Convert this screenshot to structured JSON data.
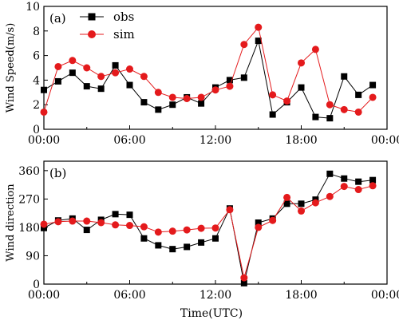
{
  "chart_data": [
    {
      "type": "line",
      "panel_label": "(a)",
      "ylabel": "Wind Speed(m/s)",
      "xlabel": "",
      "xlim": [
        0,
        24
      ],
      "ylim": [
        0,
        10
      ],
      "xticks": [
        0,
        6,
        12,
        18,
        24
      ],
      "xtick_labels": [
        "00:00",
        "06:00",
        "12:00",
        "18:00",
        "00:00"
      ],
      "yticks": [
        0,
        2,
        4,
        6,
        8,
        10
      ],
      "ytick_labels": [
        "0",
        "2",
        "4",
        "6",
        "8",
        "10"
      ],
      "grid": false,
      "legend_position": "top-left",
      "series": [
        {
          "name": "obs",
          "color": "#000000",
          "marker": "square",
          "x": [
            0,
            1,
            2,
            3,
            4,
            5,
            6,
            7,
            8,
            9,
            10,
            11,
            12,
            13,
            14,
            15,
            16,
            17,
            18,
            19,
            20,
            21,
            22,
            23
          ],
          "y": [
            3.2,
            3.9,
            4.6,
            3.5,
            3.3,
            5.2,
            3.6,
            2.2,
            1.6,
            2.0,
            2.6,
            2.1,
            3.4,
            4.0,
            4.2,
            7.2,
            1.2,
            2.2,
            3.4,
            1.0,
            0.9,
            4.3,
            2.8,
            3.6
          ]
        },
        {
          "name": "sim",
          "color": "#e41a1c",
          "marker": "circle",
          "x": [
            0,
            1,
            2,
            3,
            4,
            5,
            6,
            7,
            8,
            9,
            10,
            11,
            12,
            13,
            14,
            15,
            16,
            17,
            18,
            19,
            20,
            21,
            22,
            23
          ],
          "y": [
            1.4,
            5.1,
            5.6,
            5.0,
            4.3,
            4.6,
            4.9,
            4.3,
            3.0,
            2.6,
            2.5,
            2.6,
            3.2,
            3.5,
            6.9,
            8.3,
            2.8,
            2.3,
            5.4,
            6.5,
            2.0,
            1.6,
            1.4,
            2.6
          ]
        }
      ]
    },
    {
      "type": "line",
      "panel_label": "(b)",
      "ylabel": "Wind direction",
      "xlabel": "Time(UTC)",
      "xlim": [
        0,
        24
      ],
      "ylim": [
        0,
        390
      ],
      "xticks": [
        0,
        6,
        12,
        18,
        24
      ],
      "xtick_labels": [
        "00:00",
        "06:00",
        "12:00",
        "18:00",
        "00:00"
      ],
      "yticks": [
        0,
        90,
        180,
        270,
        360
      ],
      "ytick_labels": [
        "0",
        "90",
        "180",
        "270",
        "360"
      ],
      "grid": false,
      "series": [
        {
          "color": "#000000",
          "marker": "square",
          "x": [
            0,
            1,
            2,
            3,
            4,
            5,
            6,
            7,
            8,
            9,
            10,
            11,
            12,
            13,
            14,
            15,
            16,
            17,
            18,
            19,
            20,
            21,
            22,
            23
          ],
          "y": [
            178,
            202,
            208,
            172,
            204,
            222,
            220,
            145,
            123,
            111,
            118,
            132,
            145,
            240,
            3,
            195,
            208,
            255,
            255,
            268,
            350,
            335,
            325,
            330
          ]
        },
        {
          "color": "#e41a1c",
          "marker": "circle",
          "x": [
            0,
            1,
            2,
            3,
            4,
            5,
            6,
            7,
            8,
            9,
            10,
            11,
            12,
            13,
            14,
            15,
            16,
            17,
            18,
            19,
            20,
            21,
            22,
            23
          ],
          "y": [
            190,
            198,
            200,
            200,
            195,
            188,
            186,
            182,
            165,
            168,
            172,
            177,
            178,
            236,
            20,
            180,
            202,
            275,
            232,
            258,
            278,
            310,
            300,
            312
          ]
        }
      ]
    }
  ]
}
